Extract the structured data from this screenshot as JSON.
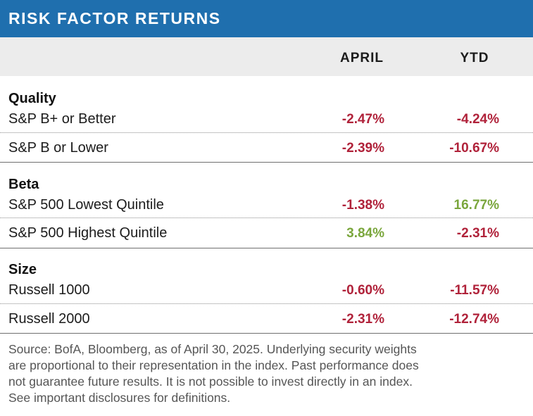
{
  "title": "RISK FACTOR RETURNS",
  "columns": {
    "april": "APRIL",
    "ytd": "YTD"
  },
  "groups": [
    {
      "name": "Quality",
      "rows": [
        {
          "label": "S&P B+ or Better",
          "april": "-2.47%",
          "ytd": "-4.24%"
        },
        {
          "label": "S&P B or Lower",
          "april": "-2.39%",
          "ytd": "-10.67%"
        }
      ]
    },
    {
      "name": "Beta",
      "rows": [
        {
          "label": "S&P 500 Lowest Quintile",
          "april": "-1.38%",
          "ytd": "16.77%"
        },
        {
          "label": "S&P 500 Highest Quintile",
          "april": "3.84%",
          "ytd": "-2.31%"
        }
      ]
    },
    {
      "name": "Size",
      "rows": [
        {
          "label": "Russell 1000",
          "april": "-0.60%",
          "ytd": "-11.57%"
        },
        {
          "label": "Russell 2000",
          "april": "-2.31%",
          "ytd": "-12.74%"
        }
      ]
    }
  ],
  "source_lines": [
    "Source: BofA, Bloomberg, as of April 30, 2025. Underlying security weights",
    "are proportional to their representation in the index. Past performance does",
    "not guarantee future results. It is not possible to invest directly in an index.",
    "See important disclosures for definitions."
  ],
  "colors": {
    "header_blue": "#1f6fae",
    "negative": "#b0223a",
    "positive": "#7aa63c"
  }
}
